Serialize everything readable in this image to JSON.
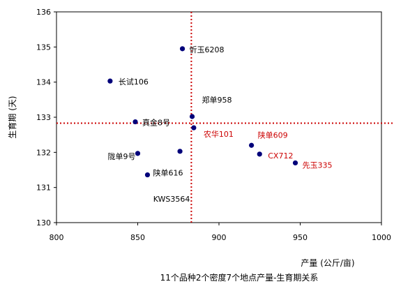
{
  "chart_data": {
    "type": "scatter",
    "title": "11个品种2个密度7个地点产量-生育期关系",
    "xlabel": "产量 (公斤/亩)",
    "ylabel": "生育期 (天)",
    "xlim": [
      800,
      1000
    ],
    "ylim": [
      130,
      136
    ],
    "x_ticks": [
      "800",
      "850",
      "900",
      "950",
      "1000"
    ],
    "y_ticks": [
      "130",
      "131",
      "132",
      "133",
      "134",
      "135",
      "136"
    ],
    "grid": false,
    "legend": "none",
    "reference_lines": {
      "x": 883,
      "y": 132.83,
      "style": "dotted",
      "color": "#cc0000"
    },
    "points": [
      {
        "label": "忻玉6208",
        "x": 877.5,
        "y": 134.95,
        "label_color": "#000000"
      },
      {
        "label": "长试106",
        "x": 833.0,
        "y": 134.03,
        "label_color": "#000000"
      },
      {
        "label": "郑单958",
        "x": 883.5,
        "y": 133.02,
        "label_color": "#000000"
      },
      {
        "label": "真金8号",
        "x": 848.5,
        "y": 132.87,
        "label_color": "#000000"
      },
      {
        "label": "农华101",
        "x": 884.5,
        "y": 132.7,
        "label_color": "#cc0000"
      },
      {
        "label": "陕单609",
        "x": 920.0,
        "y": 132.2,
        "label_color": "#cc0000"
      },
      {
        "label": "CX712",
        "x": 925.0,
        "y": 131.95,
        "label_color": "#cc0000"
      },
      {
        "label": "先玉335",
        "x": 947.0,
        "y": 131.7,
        "label_color": "#cc0000"
      },
      {
        "label": "陇单9号",
        "x": 850.0,
        "y": 131.97,
        "label_color": "#000000"
      },
      {
        "label": "KWS3564",
        "x": 876.0,
        "y": 132.03,
        "label_color": "#000000"
      },
      {
        "label": "陕单616",
        "x": 856.0,
        "y": 131.36,
        "label_color": "#000000"
      }
    ],
    "marker_color": "#00007a"
  }
}
